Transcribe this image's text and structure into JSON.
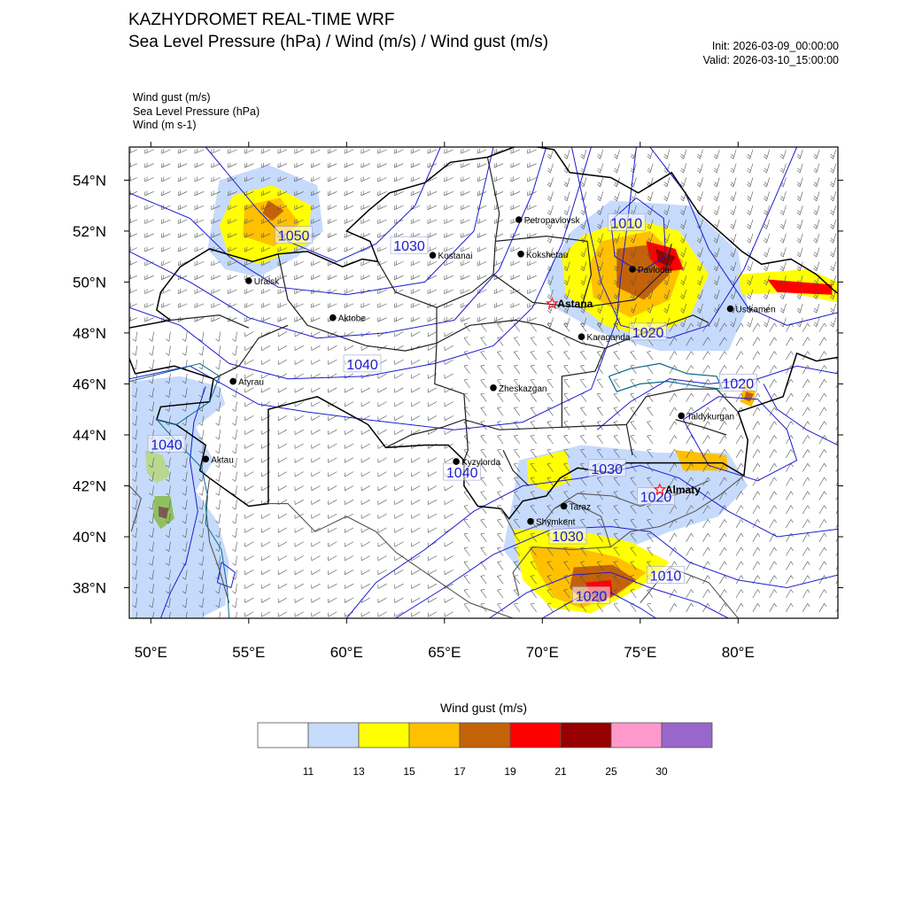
{
  "header": {
    "title": "KAZHYDROMET REAL-TIME WRF",
    "subtitle": "Sea Level Pressure  (hPa) / Wind  (m/s) / Wind gust  (m/s)",
    "init": "Init: 2026-03-09_00:00:00",
    "valid": "Valid: 2026-03-10_15:00:00"
  },
  "fields_legend": [
    "Wind gust   (m/s)",
    "Sea Level Pressure   (hPa)",
    "Wind   (m s-1)"
  ],
  "axes": {
    "lon_labels": [
      "50°E",
      "55°E",
      "60°E",
      "65°E",
      "70°E",
      "75°E",
      "80°E"
    ],
    "lon_values": [
      50,
      55,
      60,
      65,
      70,
      75,
      80
    ],
    "lat_labels": [
      "54°N",
      "52°N",
      "50°N",
      "48°N",
      "46°N",
      "44°N",
      "42°N",
      "40°N",
      "38°N"
    ],
    "lat_values": [
      54,
      52,
      50,
      48,
      46,
      44,
      42,
      40,
      38
    ],
    "lon_range": [
      48.9,
      85.1
    ],
    "lat_range": [
      36.8,
      55.3
    ]
  },
  "cities": [
    {
      "name": "Petropavlovsk",
      "lon": 68.8,
      "lat": 52.45,
      "capital": false
    },
    {
      "name": "Kostanai",
      "lon": 64.4,
      "lat": 51.05,
      "capital": false
    },
    {
      "name": "Kokshetau",
      "lon": 68.9,
      "lat": 51.1,
      "capital": false
    },
    {
      "name": "Uralsk",
      "lon": 55.0,
      "lat": 50.05,
      "capital": false
    },
    {
      "name": "Pavlodar",
      "lon": 74.6,
      "lat": 50.5,
      "capital": false
    },
    {
      "name": "Astana",
      "lon": 70.5,
      "lat": 49.15,
      "capital": true
    },
    {
      "name": "Aktobe",
      "lon": 59.3,
      "lat": 48.6,
      "capital": false
    },
    {
      "name": "Ustkamen",
      "lon": 79.6,
      "lat": 48.95,
      "capital": false
    },
    {
      "name": "Karaganda",
      "lon": 72.0,
      "lat": 47.85,
      "capital": false
    },
    {
      "name": "Atyrau",
      "lon": 54.2,
      "lat": 46.1,
      "capital": false
    },
    {
      "name": "Zheskazgan",
      "lon": 67.5,
      "lat": 45.85,
      "capital": false
    },
    {
      "name": "Taldykurgan",
      "lon": 77.1,
      "lat": 44.75,
      "capital": false
    },
    {
      "name": "Aktau",
      "lon": 52.8,
      "lat": 43.05,
      "capital": false
    },
    {
      "name": "Kyzylorda",
      "lon": 65.6,
      "lat": 42.95,
      "capital": false
    },
    {
      "name": "Almaty",
      "lon": 76.0,
      "lat": 41.85,
      "capital": true
    },
    {
      "name": "Taraz",
      "lon": 71.1,
      "lat": 41.2,
      "capital": false
    },
    {
      "name": "Shymkent",
      "lon": 69.4,
      "lat": 40.6,
      "capital": false
    }
  ],
  "isobar_labels": [
    {
      "text": "1050",
      "lon": 57.3,
      "lat": 51.8
    },
    {
      "text": "1030",
      "lon": 63.2,
      "lat": 51.4
    },
    {
      "text": "1010",
      "lon": 74.3,
      "lat": 52.3
    },
    {
      "text": "1040",
      "lon": 60.8,
      "lat": 46.75
    },
    {
      "text": "1020",
      "lon": 75.4,
      "lat": 48.0
    },
    {
      "text": "1020",
      "lon": 80.0,
      "lat": 46.0
    },
    {
      "text": "1040",
      "lon": 50.8,
      "lat": 43.6
    },
    {
      "text": "1040",
      "lon": 65.9,
      "lat": 42.5
    },
    {
      "text": "1030",
      "lon": 73.3,
      "lat": 42.65
    },
    {
      "text": "1020",
      "lon": 75.8,
      "lat": 41.55
    },
    {
      "text": "1030",
      "lon": 71.3,
      "lat": 40.0
    },
    {
      "text": "1010",
      "lon": 76.3,
      "lat": 38.45
    },
    {
      "text": "1020",
      "lon": 72.5,
      "lat": 37.65
    }
  ],
  "colorbar": {
    "title": "Wind gust (m/s)",
    "colors": [
      "#ffffff",
      "#c6dafc",
      "#ffff00",
      "#ffc000",
      "#c46209",
      "#ff0000",
      "#960000",
      "#ff99cc",
      "#9966cc"
    ],
    "labels": [
      "11",
      "13",
      "15",
      "17",
      "19",
      "21",
      "25",
      "30"
    ]
  },
  "styles": {
    "isobar_color": "#1c1cd0",
    "border_color": "#000000",
    "oblast_color": "#222222",
    "neighbour_border_color": "#555555",
    "barb_color": "#555555",
    "label_color": "#1c1cd0"
  }
}
